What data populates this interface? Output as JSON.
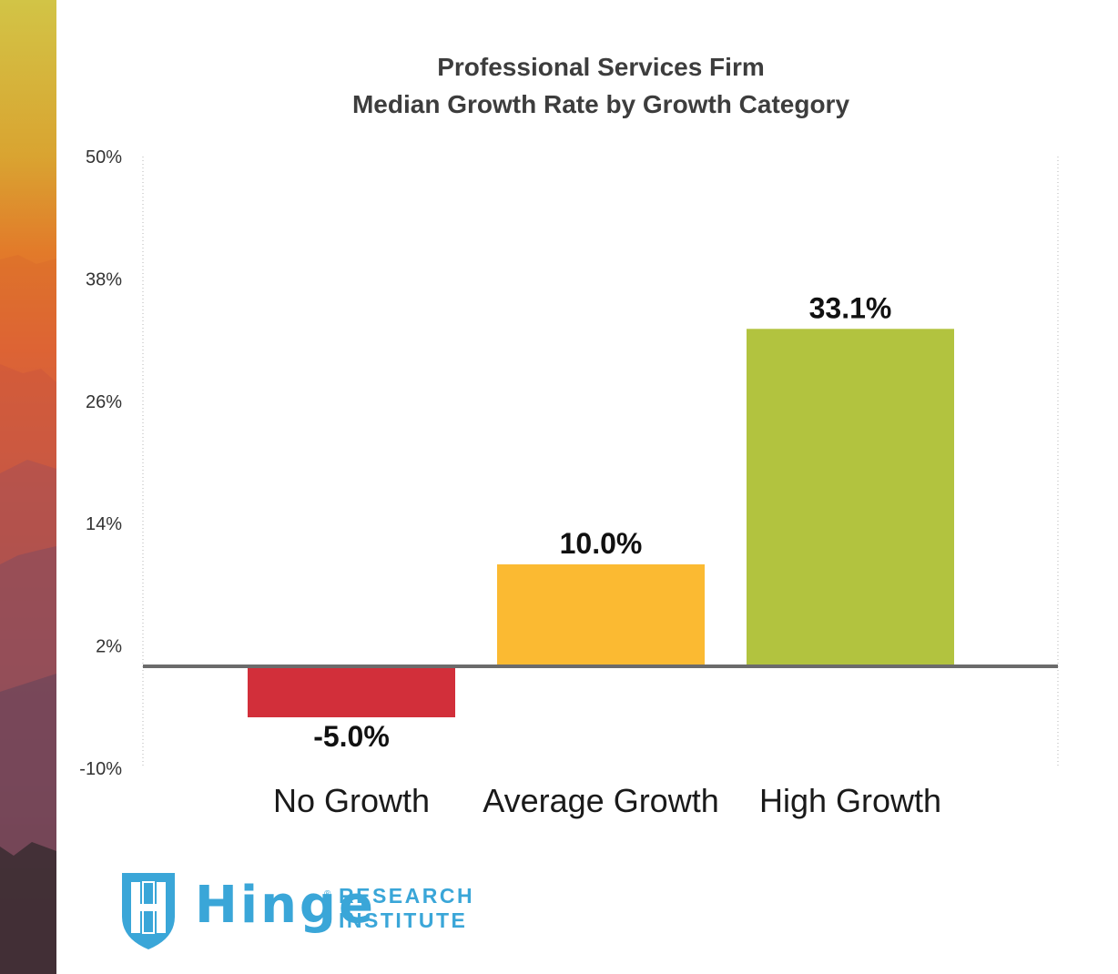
{
  "chart_data": {
    "type": "bar",
    "title": "Professional Services Firm",
    "subtitle": "Median Growth Rate by Growth Category",
    "categories": [
      "No Growth",
      "Average Growth",
      "High Growth"
    ],
    "values": [
      -5.0,
      10.0,
      33.1
    ],
    "value_labels": [
      "-5.0%",
      "10.0%",
      "33.1%"
    ],
    "colors": [
      "#d22f3a",
      "#fbba32",
      "#b2c33f"
    ],
    "yticks": [
      "50%",
      "38%",
      "26%",
      "14%",
      "2%",
      "-10%"
    ],
    "ytick_values": [
      50,
      38,
      26,
      14,
      2,
      -10
    ],
    "ylim": [
      -10,
      50
    ],
    "baseline": 0,
    "xlabel": "",
    "ylabel": "",
    "grid": false
  },
  "branding": {
    "logo_word": "Hinge",
    "logo_line1": "RESEARCH",
    "logo_line2": "INSTITUTE",
    "logo_mark": "®",
    "color": "#3aa6d8"
  }
}
